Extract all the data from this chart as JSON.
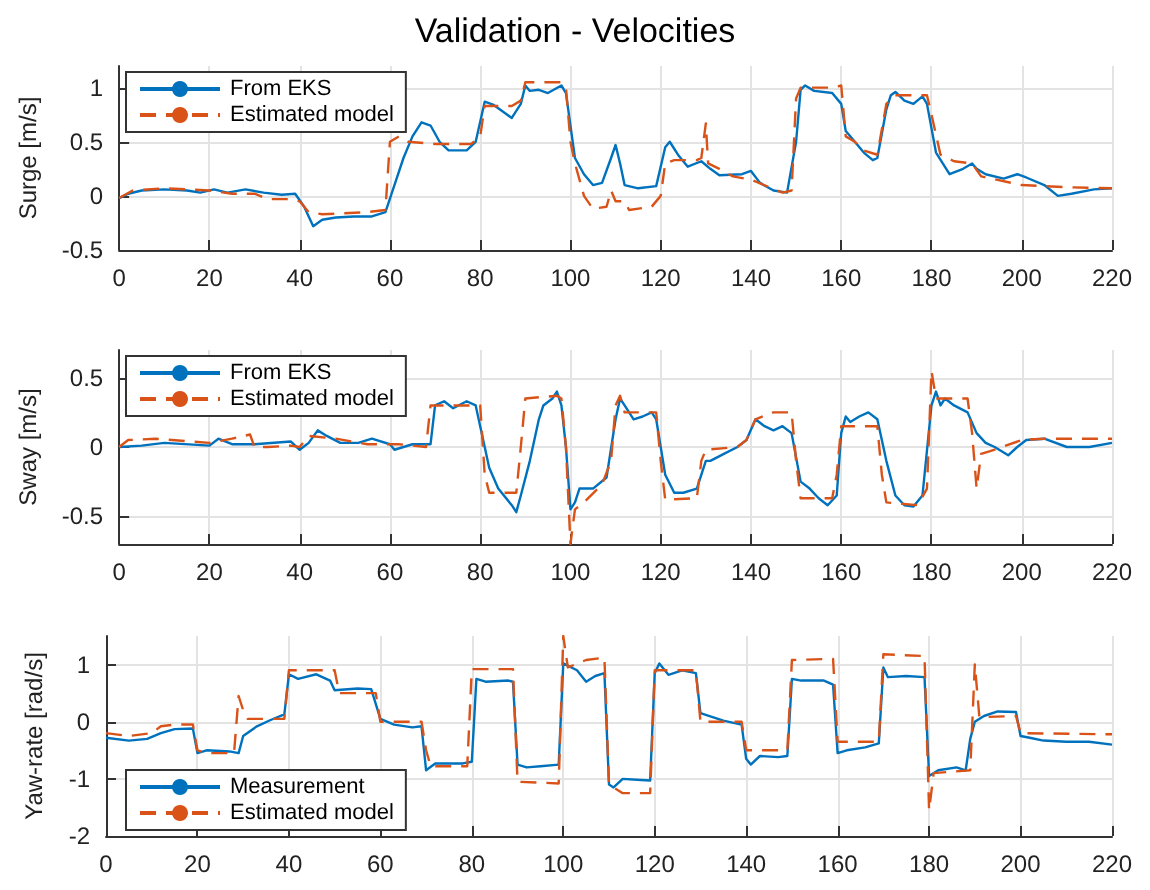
{
  "chart_data": [
    {
      "type": "line",
      "title": "Validation - Velocities",
      "ylabel": "Surge [m/s]",
      "xlim": [
        0,
        220
      ],
      "xticks": [
        0,
        20,
        40,
        60,
        80,
        100,
        120,
        140,
        160,
        180,
        200,
        220
      ],
      "ylim": [
        -0.5,
        1.2
      ],
      "yticks": [
        -0.5,
        0,
        0.5,
        1
      ],
      "grid": true,
      "legend": "top left",
      "marker": "none",
      "series": [
        {
          "name": "From EKS",
          "color": "#0072bd",
          "line_style": "solid",
          "x": [
            0,
            2,
            5,
            10,
            15,
            18,
            21,
            24,
            28,
            32,
            36,
            39,
            41,
            43,
            45,
            48,
            52,
            56,
            59,
            61,
            63,
            65,
            67,
            69,
            71,
            73,
            77,
            79,
            81,
            83,
            86,
            87,
            89,
            90,
            91,
            93,
            95,
            98,
            99,
            101,
            103,
            105,
            107,
            109,
            110,
            111,
            112,
            115,
            119,
            121,
            122,
            124,
            126,
            129,
            131,
            133,
            138,
            140,
            142,
            145,
            148,
            150,
            151,
            152,
            154,
            158,
            160,
            161,
            162,
            165,
            167,
            168,
            170,
            171,
            172,
            174,
            176,
            178,
            179,
            181,
            184,
            187,
            189,
            190,
            192,
            196,
            199,
            201,
            205,
            208,
            211,
            216,
            220
          ],
          "values": [
            -0.02,
            0.02,
            0.05,
            0.06,
            0.05,
            0.03,
            0.06,
            0.03,
            0.06,
            0.03,
            0.01,
            0.02,
            -0.1,
            -0.28,
            -0.22,
            -0.2,
            -0.19,
            -0.19,
            -0.15,
            0.1,
            0.35,
            0.55,
            0.68,
            0.65,
            0.5,
            0.42,
            0.42,
            0.5,
            0.87,
            0.84,
            0.75,
            0.72,
            0.85,
            1.02,
            0.97,
            0.98,
            0.95,
            1.02,
            0.95,
            0.35,
            0.2,
            0.1,
            0.12,
            0.35,
            0.47,
            0.3,
            0.1,
            0.07,
            0.09,
            0.45,
            0.5,
            0.37,
            0.27,
            0.32,
            0.25,
            0.19,
            0.2,
            0.23,
            0.12,
            0.05,
            0.03,
            0.5,
            0.98,
            1.02,
            0.97,
            0.95,
            0.85,
            0.6,
            0.55,
            0.4,
            0.33,
            0.35,
            0.8,
            0.93,
            0.96,
            0.88,
            0.85,
            0.92,
            0.85,
            0.4,
            0.2,
            0.25,
            0.3,
            0.25,
            0.2,
            0.16,
            0.2,
            0.17,
            0.1,
            0,
            0.02,
            0.06,
            0.07
          ]
        },
        {
          "name": "Estimated model",
          "color": "#d95319",
          "line_style": "dashed",
          "x": [
            0,
            3,
            10,
            20,
            25,
            30,
            33,
            38,
            40,
            42,
            45,
            55,
            59,
            60,
            62,
            64,
            70,
            78,
            80,
            81,
            87,
            89,
            90,
            98,
            99,
            100,
            101,
            103,
            105,
            108,
            109,
            110,
            112,
            113,
            118,
            120,
            121,
            123,
            128,
            129,
            130,
            130.5,
            133,
            136,
            140,
            147,
            149,
            150,
            151,
            158,
            160,
            161,
            163,
            165,
            168,
            170,
            172,
            179,
            180,
            182,
            185,
            189,
            191,
            200,
            210,
            220
          ],
          "values": [
            -0.02,
            0.05,
            0.07,
            0.05,
            0.02,
            0.02,
            -0.03,
            -0.03,
            -0.05,
            -0.15,
            -0.17,
            -0.15,
            -0.13,
            0.5,
            0.55,
            0.5,
            0.48,
            0.48,
            0.55,
            0.83,
            0.83,
            0.88,
            1.05,
            1.05,
            1.0,
            0.5,
            0.3,
            0,
            -0.12,
            -0.1,
            0.05,
            -0.05,
            -0.05,
            -0.13,
            -0.1,
            0,
            0.3,
            0.33,
            0.33,
            0.35,
            0.67,
            0.3,
            0.25,
            0.18,
            0.15,
            0.03,
            0.05,
            0.9,
            1.0,
            1.0,
            1.02,
            0.55,
            0.5,
            0.42,
            0.38,
            0.85,
            0.93,
            0.93,
            0.75,
            0.38,
            0.32,
            0.3,
            0.18,
            0.1,
            0.08,
            0.07
          ]
        }
      ]
    },
    {
      "type": "line",
      "ylabel": "Sway [m/s]",
      "xlim": [
        0,
        220
      ],
      "xticks": [
        0,
        20,
        40,
        60,
        80,
        100,
        120,
        140,
        160,
        180,
        200,
        220
      ],
      "ylim": [
        -0.7,
        0.7
      ],
      "yticks": [
        -0.5,
        0,
        0.5
      ],
      "grid": true,
      "legend": "top left",
      "marker": "none",
      "series": [
        {
          "name": "From EKS",
          "color": "#0072bd",
          "line_style": "solid",
          "x": [
            0,
            5,
            10,
            20,
            22,
            25,
            30,
            38,
            40,
            42,
            44,
            46,
            49,
            53,
            56,
            60,
            61,
            65,
            69,
            70,
            72,
            74,
            77,
            79,
            81,
            82,
            84,
            87,
            88,
            89,
            91,
            93,
            94,
            96,
            97,
            98,
            99,
            100,
            101,
            102,
            105,
            108,
            110,
            111,
            112,
            114,
            116,
            118,
            119,
            120,
            121,
            123,
            125,
            128,
            130,
            131,
            134,
            137,
            139,
            141,
            143,
            145,
            147,
            149,
            151,
            153,
            155,
            157,
            159,
            160,
            161,
            162,
            164,
            166,
            168,
            170,
            172,
            174,
            176,
            178,
            180,
            181,
            182,
            183,
            185,
            188,
            190,
            192,
            194,
            197,
            199,
            201,
            205,
            210,
            215,
            220
          ],
          "values": [
            0,
            0.01,
            0.03,
            0.01,
            0.06,
            0.02,
            0.02,
            0.04,
            -0.02,
            0.03,
            0.12,
            0.08,
            0.03,
            0.03,
            0.06,
            0.02,
            -0.02,
            0.02,
            0.02,
            0.3,
            0.33,
            0.28,
            0.33,
            0.3,
            0,
            -0.15,
            -0.3,
            -0.42,
            -0.47,
            -0.35,
            -0.1,
            0.2,
            0.3,
            0.35,
            0.4,
            0.3,
            0,
            -0.45,
            -0.4,
            -0.3,
            -0.3,
            -0.22,
            0.2,
            0.35,
            0.3,
            0.2,
            0.22,
            0.25,
            0.2,
            0,
            -0.2,
            -0.33,
            -0.33,
            -0.3,
            -0.1,
            -0.1,
            -0.05,
            0,
            0.05,
            0.2,
            0.15,
            0.12,
            0.15,
            0.1,
            -0.25,
            -0.3,
            -0.37,
            -0.42,
            -0.35,
            0.1,
            0.22,
            0.18,
            0.22,
            0.25,
            0.2,
            -0.1,
            -0.35,
            -0.42,
            -0.43,
            -0.35,
            0.3,
            0.4,
            0.3,
            0.35,
            0.3,
            0.25,
            0.1,
            0.03,
            0,
            -0.06,
            0,
            0.05,
            0.06,
            0,
            0,
            0.03
          ]
        },
        {
          "name": "Estimated model",
          "color": "#d95319",
          "line_style": "dashed",
          "x": [
            0,
            2,
            8,
            20,
            25,
            29,
            30,
            33,
            38,
            40,
            42,
            48,
            55,
            62,
            68,
            69,
            80,
            81,
            82,
            88,
            89,
            90,
            97,
            98,
            99,
            100,
            101,
            103,
            107,
            109,
            110,
            111,
            112,
            119,
            120,
            121,
            128,
            129,
            130,
            137,
            139,
            141,
            145,
            149,
            150,
            151,
            158,
            159,
            160,
            168,
            169,
            170,
            177,
            179,
            180,
            181,
            188,
            189,
            190,
            191,
            193,
            200,
            205,
            220
          ],
          "values": [
            0,
            0.05,
            0.06,
            0.03,
            0.06,
            0.09,
            0,
            0,
            0.01,
            0,
            0.08,
            0.06,
            0.02,
            0.02,
            0,
            0.3,
            0.3,
            -0.2,
            -0.33,
            -0.33,
            0,
            0.35,
            0.37,
            0.35,
            0,
            -0.7,
            -0.45,
            -0.4,
            -0.27,
            -0.1,
            0.3,
            0.37,
            0.25,
            0.25,
            -0.1,
            -0.38,
            -0.37,
            -0.1,
            -0.02,
            0,
            0.05,
            0.2,
            0.25,
            0.25,
            -0.1,
            -0.37,
            -0.37,
            -0.2,
            0.15,
            0.15,
            -0.2,
            -0.4,
            -0.42,
            -0.3,
            0.55,
            0.35,
            0.35,
            0.1,
            -0.3,
            -0.05,
            -0.03,
            0.05,
            0.06,
            0.06
          ]
        }
      ]
    },
    {
      "type": "line",
      "ylabel": "Yaw-rate [rad/s]",
      "xlim": [
        0,
        220
      ],
      "xticks": [
        0,
        20,
        40,
        60,
        80,
        100,
        120,
        140,
        160,
        180,
        200,
        220
      ],
      "ylim": [
        -2,
        1.5
      ],
      "yticks": [
        -2,
        -1,
        0,
        1
      ],
      "grid": true,
      "legend": "bottom left",
      "marker": "none",
      "series": [
        {
          "name": "Measurement",
          "color": "#0072bd",
          "line_style": "solid",
          "x": [
            0,
            5,
            9,
            12,
            15,
            19,
            20,
            22,
            27,
            29,
            30,
            33,
            36,
            39,
            40,
            42,
            46,
            49,
            50,
            55,
            58,
            60,
            63,
            67,
            69,
            70,
            72,
            78,
            80,
            81,
            83,
            88,
            89,
            90,
            92,
            95,
            99,
            100,
            103,
            105,
            107,
            109,
            110,
            111,
            113,
            117,
            119,
            120,
            121,
            123,
            126,
            129,
            130,
            135,
            139,
            140,
            141,
            143,
            147,
            149,
            150,
            152,
            157,
            159,
            160,
            162,
            166,
            169,
            170,
            171,
            175,
            179,
            180,
            182,
            186,
            188,
            189,
            190,
            192,
            195,
            199,
            200,
            202,
            205,
            210,
            215,
            220
          ],
          "values": [
            -0.28,
            -0.33,
            -0.3,
            -0.2,
            -0.13,
            -0.12,
            -0.55,
            -0.5,
            -0.52,
            -0.55,
            -0.25,
            -0.08,
            0.03,
            0.13,
            0.83,
            0.75,
            0.83,
            0.72,
            0.55,
            0.58,
            0.57,
            0.05,
            -0.05,
            -0.1,
            -0.08,
            -0.85,
            -0.73,
            -0.73,
            -0.7,
            0.75,
            0.7,
            0.72,
            0.7,
            -0.75,
            -0.8,
            -0.78,
            -0.75,
            1.02,
            0.9,
            0.7,
            0.8,
            0.85,
            -1.1,
            -1.15,
            -1.0,
            -1.02,
            -1.03,
            0.85,
            1.02,
            0.82,
            0.9,
            0.85,
            0.15,
            0.02,
            -0.05,
            -0.65,
            -0.75,
            -0.6,
            -0.62,
            -0.6,
            0.75,
            0.72,
            0.72,
            0.65,
            -0.55,
            -0.5,
            -0.45,
            -0.38,
            0.95,
            0.78,
            0.8,
            0.78,
            -0.95,
            -0.85,
            -0.8,
            -0.85,
            -0.3,
            0,
            0.1,
            0.18,
            0.17,
            -0.25,
            -0.28,
            -0.33,
            -0.35,
            -0.35,
            -0.4
          ]
        },
        {
          "name": "Estimated model",
          "color": "#d95319",
          "line_style": "dashed",
          "x": [
            0,
            5,
            10,
            12,
            15,
            19,
            20,
            22,
            28,
            29,
            30,
            31,
            39,
            40,
            50,
            51,
            59,
            60,
            69,
            70,
            71,
            79,
            80,
            89,
            90,
            99,
            100,
            101,
            105,
            109,
            110,
            113,
            119,
            120,
            129,
            130,
            139,
            140,
            149,
            150,
            159,
            160,
            169,
            170,
            179,
            180,
            181,
            189,
            190,
            191,
            199,
            200,
            220
          ],
          "values": [
            -0.2,
            -0.25,
            -0.2,
            -0.08,
            -0.05,
            -0.05,
            -0.5,
            -0.55,
            -0.55,
            0.45,
            0.2,
            0.05,
            0.05,
            0.9,
            0.9,
            0.5,
            0.5,
            0,
            0,
            -0.5,
            -0.78,
            -0.78,
            0.92,
            0.92,
            -1.05,
            -1.08,
            1.5,
            0.95,
            1.08,
            1.12,
            -1.1,
            -1.25,
            -1.25,
            0.9,
            0.9,
            0,
            0,
            -0.5,
            -0.5,
            1.08,
            1.1,
            -0.35,
            -0.35,
            1.18,
            1.15,
            -1.55,
            -0.9,
            -0.85,
            1.0,
            0.08,
            0.1,
            -0.2,
            -0.22
          ]
        }
      ]
    }
  ]
}
